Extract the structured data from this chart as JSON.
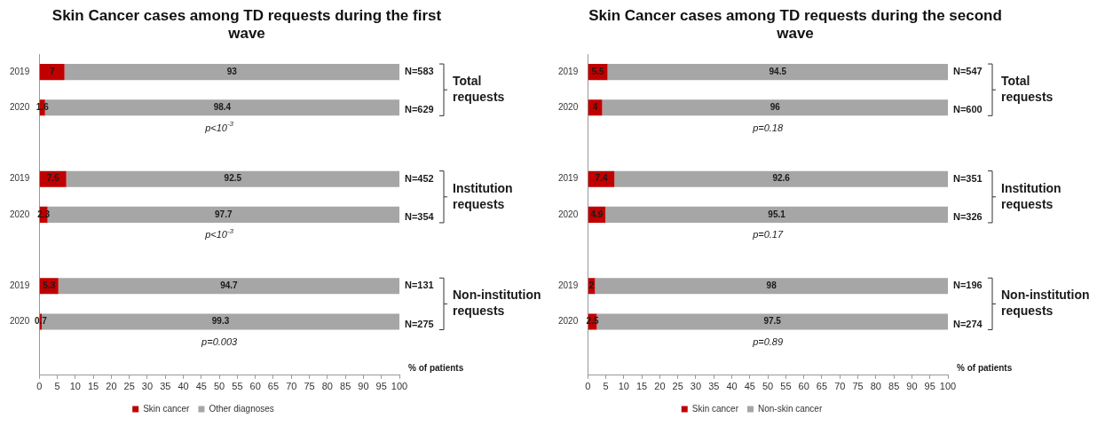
{
  "chart_data": [
    {
      "type": "bar",
      "orientation": "horizontal",
      "stacked": true,
      "title": "Skin Cancer cases among TD requests during the first wave",
      "xlabel": "% of patients",
      "categories": [
        "2019",
        "2020",
        null,
        "2019",
        "2020",
        null,
        "2019",
        "2020",
        null
      ],
      "series": [
        {
          "name": "Skin cancer",
          "color": "#c00000",
          "values": [
            7,
            1.6,
            null,
            7.5,
            2.3,
            null,
            5.3,
            0.7,
            null
          ]
        },
        {
          "name": "Other diagnoses",
          "color": "#a6a6a6",
          "values": [
            93,
            98.4,
            null,
            92.5,
            97.7,
            null,
            94.7,
            99.3,
            null
          ]
        }
      ],
      "xlim": [
        0,
        100
      ],
      "xticks": [
        0,
        5,
        10,
        15,
        20,
        25,
        30,
        35,
        40,
        45,
        50,
        55,
        60,
        65,
        70,
        75,
        80,
        85,
        90,
        95,
        100
      ],
      "data_labels": true,
      "legend": "bottom",
      "annotations": [
        "N=583",
        "N=629",
        "Total requests",
        "p<10$^{-3}$",
        "N=452",
        "N=354",
        "Institution requests",
        "p<10$^{-3}$",
        "N=131",
        "N=275",
        "Non-institution requests",
        "p=0.003"
      ]
    },
    {
      "type": "bar",
      "orientation": "horizontal",
      "stacked": true,
      "title": "Skin Cancer cases among TD requests during the second wave",
      "xlabel": "% of patients",
      "categories": [
        "2019",
        "2020",
        null,
        "2019",
        "2020",
        null,
        "2019",
        "2020",
        null
      ],
      "series": [
        {
          "name": "Skin cancer",
          "color": "#c00000",
          "values": [
            5.5,
            4,
            null,
            7.4,
            4.9,
            null,
            2,
            2.5,
            null
          ]
        },
        {
          "name": "Non-skin cancer",
          "color": "#a6a6a6",
          "values": [
            94.5,
            96,
            null,
            92.6,
            95.1,
            null,
            98,
            97.5,
            null
          ]
        }
      ],
      "xlim": [
        0,
        100
      ],
      "xticks": [
        0,
        5,
        10,
        15,
        20,
        25,
        30,
        35,
        40,
        45,
        50,
        55,
        60,
        65,
        70,
        75,
        80,
        85,
        90,
        95,
        100
      ],
      "data_labels": true,
      "legend": "bottom",
      "annotations": [
        "N=547",
        "N=600",
        "Total requests",
        "p=0.18",
        "N=351",
        "N=326",
        "Institution requests",
        "p=0.17",
        "N=196",
        "N=274",
        "Non-institution requests",
        "p=0.89"
      ]
    }
  ]
}
